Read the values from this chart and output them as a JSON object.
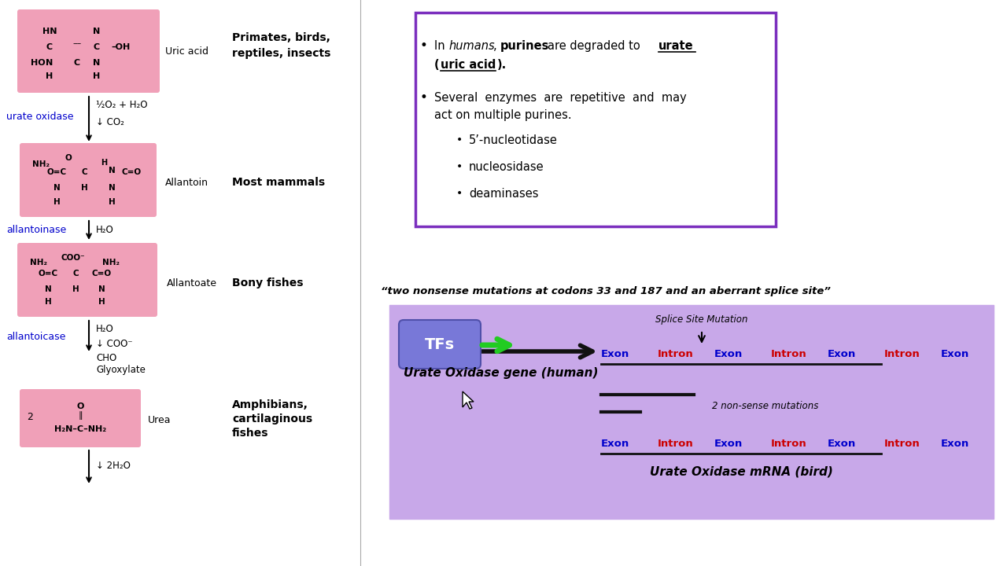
{
  "bg_color": "#ffffff",
  "right_top_box_color": "#7B2FBE",
  "right_bottom_bg": "#C8A8E9",
  "text_color": "#000000",
  "blue_text": "#0000CC",
  "red_text": "#CC0000",
  "pink_structure_color": "#F0A0B8",
  "enzyme_color": "#0000CC",
  "quote_text": "“two nonsense mutations at codons 33 and 187 and an aberrant splice site”",
  "sub_bullet1": "5’-nucleotidase",
  "sub_bullet2": "nucleosidase",
  "sub_bullet3": "deaminases",
  "splice_label": "Splice Site Mutation",
  "exon_intron_top": [
    "Exon",
    "Intron",
    "Exon",
    "Intron",
    "Exon",
    "Intron",
    "Exon"
  ],
  "exon_intron_bot": [
    "Exon",
    "Intron",
    "Exon",
    "Intron",
    "Exon",
    "Intron",
    "Exon"
  ],
  "gene_label": "Urate Oxidase gene (human)",
  "mrna_label": "Urate Oxidase mRNA (bird)",
  "nonsense_label": "2 non-sense mutations",
  "tfs_label": "TFs"
}
